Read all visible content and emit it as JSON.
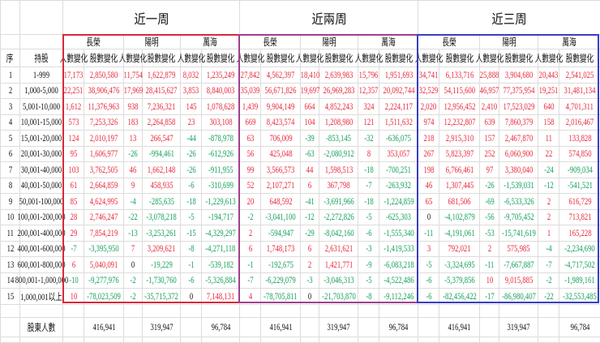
{
  "periods": [
    "近一周",
    "近兩周",
    "近三周"
  ],
  "companies": [
    "長榮",
    "陽明",
    "萬海"
  ],
  "sub_headers": {
    "people": "人數變化",
    "shares": "股數變化"
  },
  "col_headers": {
    "seq": "序",
    "range": "持股"
  },
  "colors": {
    "positive": "#e8273a",
    "negative": "#14a05a",
    "box_week1": "#d9283c",
    "box_week2": "#a04090",
    "box_week3": "#3a3ec0"
  },
  "rows": [
    {
      "seq": "1",
      "range": "1-999",
      "values": [
        "17,173",
        "2,850,580",
        "11,754",
        "1,622,879",
        "8,032",
        "1,235,249",
        "27,842",
        "4,562,397",
        "18,410",
        "2,639,983",
        "15,796",
        "1,951,693",
        "34,741",
        "6,133,716",
        "25,888",
        "3,904,680",
        "20,443",
        "2,541,025"
      ]
    },
    {
      "seq": "2",
      "range": "1,000-5,000",
      "values": [
        "22,251",
        "38,906,476",
        "17,969",
        "28,415,627",
        "3,853",
        "8,840,003",
        "35,039",
        "56,671,826",
        "19,697",
        "26,969,283",
        "12,357",
        "20,092,744",
        "32,529",
        "54,115,600",
        "46,957",
        "77,375,954",
        "19,251",
        "31,481,134"
      ]
    },
    {
      "seq": "3",
      "range": "5,001-10,000",
      "values": [
        "1,612",
        "11,376,963",
        "938",
        "7,236,321",
        "145",
        "1,078,628",
        "1,439",
        "9,904,149",
        "664",
        "4,852,243",
        "324",
        "2,224,117",
        "2,020",
        "12,956,452",
        "2,410",
        "17,523,029",
        "640",
        "4,701,311"
      ]
    },
    {
      "seq": "4",
      "range": "10,001-15,000",
      "values": [
        "573",
        "7,253,326",
        "183",
        "2,264,858",
        "23",
        "303,108",
        "669",
        "8,423,574",
        "104",
        "1,208,980",
        "121",
        "1,511,632",
        "974",
        "12,232,807",
        "639",
        "7,860,379",
        "158",
        "2,016,467"
      ]
    },
    {
      "seq": "5",
      "range": "15,001-20,000",
      "values": [
        "124",
        "2,010,197",
        "13",
        "266,547",
        "-44",
        "-878,978",
        "63",
        "706,009",
        "-39",
        "-853,145",
        "-32",
        "-636,075",
        "218",
        "2,915,310",
        "157",
        "2,467,870",
        "11",
        "133,828"
      ]
    },
    {
      "seq": "6",
      "range": "20,001-30,000",
      "values": [
        "95",
        "1,606,977",
        "-26",
        "-994,461",
        "-26",
        "-612,926",
        "56",
        "425,048",
        "-63",
        "-2,080,912",
        "8",
        "353,057",
        "267",
        "5,823,397",
        "252",
        "6,060,900",
        "22",
        "574,850"
      ]
    },
    {
      "seq": "7",
      "range": "30,001-40,000",
      "values": [
        "103",
        "3,762,505",
        "46",
        "1,662,148",
        "-26",
        "-911,955",
        "99",
        "3,566,573",
        "44",
        "1,598,513",
        "-18",
        "-700,251",
        "198",
        "6,766,461",
        "97",
        "3,380,040",
        "-24",
        "-909,034"
      ]
    },
    {
      "seq": "8",
      "range": "40,001-50,000",
      "values": [
        "61",
        "2,664,859",
        "9",
        "458,935",
        "-6",
        "-310,699",
        "52",
        "2,107,271",
        "6",
        "367,798",
        "-7",
        "-263,932",
        "46",
        "1,307,445",
        "-26",
        "-1,539,031",
        "-12",
        "-541,521"
      ]
    },
    {
      "seq": "9",
      "range": "50,001-100,000",
      "values": [
        "85",
        "4,624,995",
        "-4",
        "-285,635",
        "-18",
        "-1,229,613",
        "20",
        "648,592",
        "-41",
        "-3,691,966",
        "-18",
        "-1,224,859",
        "65",
        "681,506",
        "-69",
        "-6,533,326",
        "2",
        "616,729"
      ]
    },
    {
      "seq": "10",
      "range": "100,001-200,000",
      "values": [
        "28",
        "2,746,247",
        "-22",
        "-3,078,218",
        "-5",
        "-194,717",
        "-2",
        "-3,041,100",
        "-12",
        "-2,272,826",
        "-5",
        "-625,303",
        "0",
        "-4,102,879",
        "-56",
        "-9,705,452",
        "2",
        "713,821"
      ]
    },
    {
      "seq": "11",
      "range": "200,001-400,000",
      "values": [
        "29",
        "7,854,219",
        "-13",
        "-3,253,261",
        "-15",
        "-4,329,297",
        "2",
        "-594,947",
        "-29",
        "-8,042,160",
        "-6",
        "-1,555,340",
        "-11",
        "-4,191,061",
        "-53",
        "-15,741,619",
        "1",
        "165,228"
      ]
    },
    {
      "seq": "12",
      "range": "400,001-600,000",
      "values": [
        "-7",
        "-3,395,950",
        "7",
        "3,209,621",
        "-8",
        "-4,271,118",
        "6",
        "1,748,173",
        "6",
        "2,631,621",
        "-3",
        "-1,419,533",
        "3",
        "792,021",
        "2",
        "575,985",
        "-4",
        "-2,234,690"
      ]
    },
    {
      "seq": "13",
      "range": "600,001-800,000",
      "values": [
        "6",
        "5,040,091",
        "0",
        "-19,229",
        "-1",
        "-539,182",
        "-1",
        "-192,675",
        "2",
        "1,421,771",
        "-9",
        "-6,083,218",
        "-5",
        "-3,324,695",
        "-11",
        "-7,667,887",
        "-7",
        "-4,717,502"
      ]
    },
    {
      "seq": "14",
      "range": "800,001-1,000,000",
      "values": [
        "-10",
        "-9,277,976",
        "-2",
        "-1,730,760",
        "-6",
        "-5,326,884",
        "-7",
        "-6,229,079",
        "-3",
        "-3,046,313",
        "-5",
        "-4,522,486",
        "-6",
        "-5,379,856",
        "10",
        "9,015,885",
        "-2",
        "-1,989,161"
      ]
    },
    {
      "seq": "15",
      "range": "1,000,001以上",
      "values": [
        "10",
        "-78,023,509",
        "-2",
        "-35,715,372",
        "0",
        "7,148,131",
        "4",
        "-78,705,811",
        "0",
        "-21,703,870",
        "-8",
        "-9,112,246",
        "-6",
        "-82,456,422",
        "-17",
        "-86,980,407",
        "-22",
        "-32,553,485"
      ]
    }
  ],
  "total": {
    "label": "股東人數",
    "values": [
      "416,941",
      "319,947",
      "96,784"
    ]
  }
}
